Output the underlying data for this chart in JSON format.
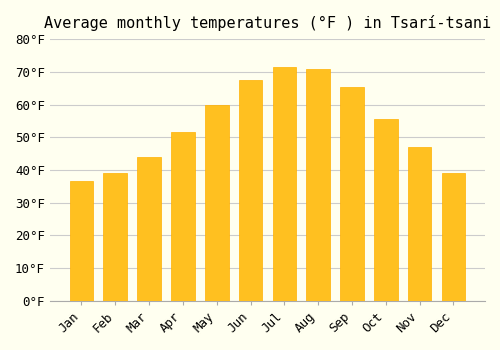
{
  "title": "Average monthly temperatures (°F ) in Tsarí-tsani",
  "months": [
    "Jan",
    "Feb",
    "Mar",
    "Apr",
    "May",
    "Jun",
    "Jul",
    "Aug",
    "Sep",
    "Oct",
    "Nov",
    "Dec"
  ],
  "values": [
    36.5,
    39.0,
    44.0,
    51.5,
    60.0,
    67.5,
    71.5,
    71.0,
    65.5,
    55.5,
    47.0,
    39.0
  ],
  "bar_color_main": "#FFC020",
  "bar_color_edge": "#FFB000",
  "background_color": "#FFFFF0",
  "grid_color": "#CCCCCC",
  "ylim": [
    0,
    80
  ],
  "yticks": [
    0,
    10,
    20,
    30,
    40,
    50,
    60,
    70,
    80
  ],
  "title_fontsize": 11,
  "tick_fontsize": 9,
  "font_family": "monospace"
}
